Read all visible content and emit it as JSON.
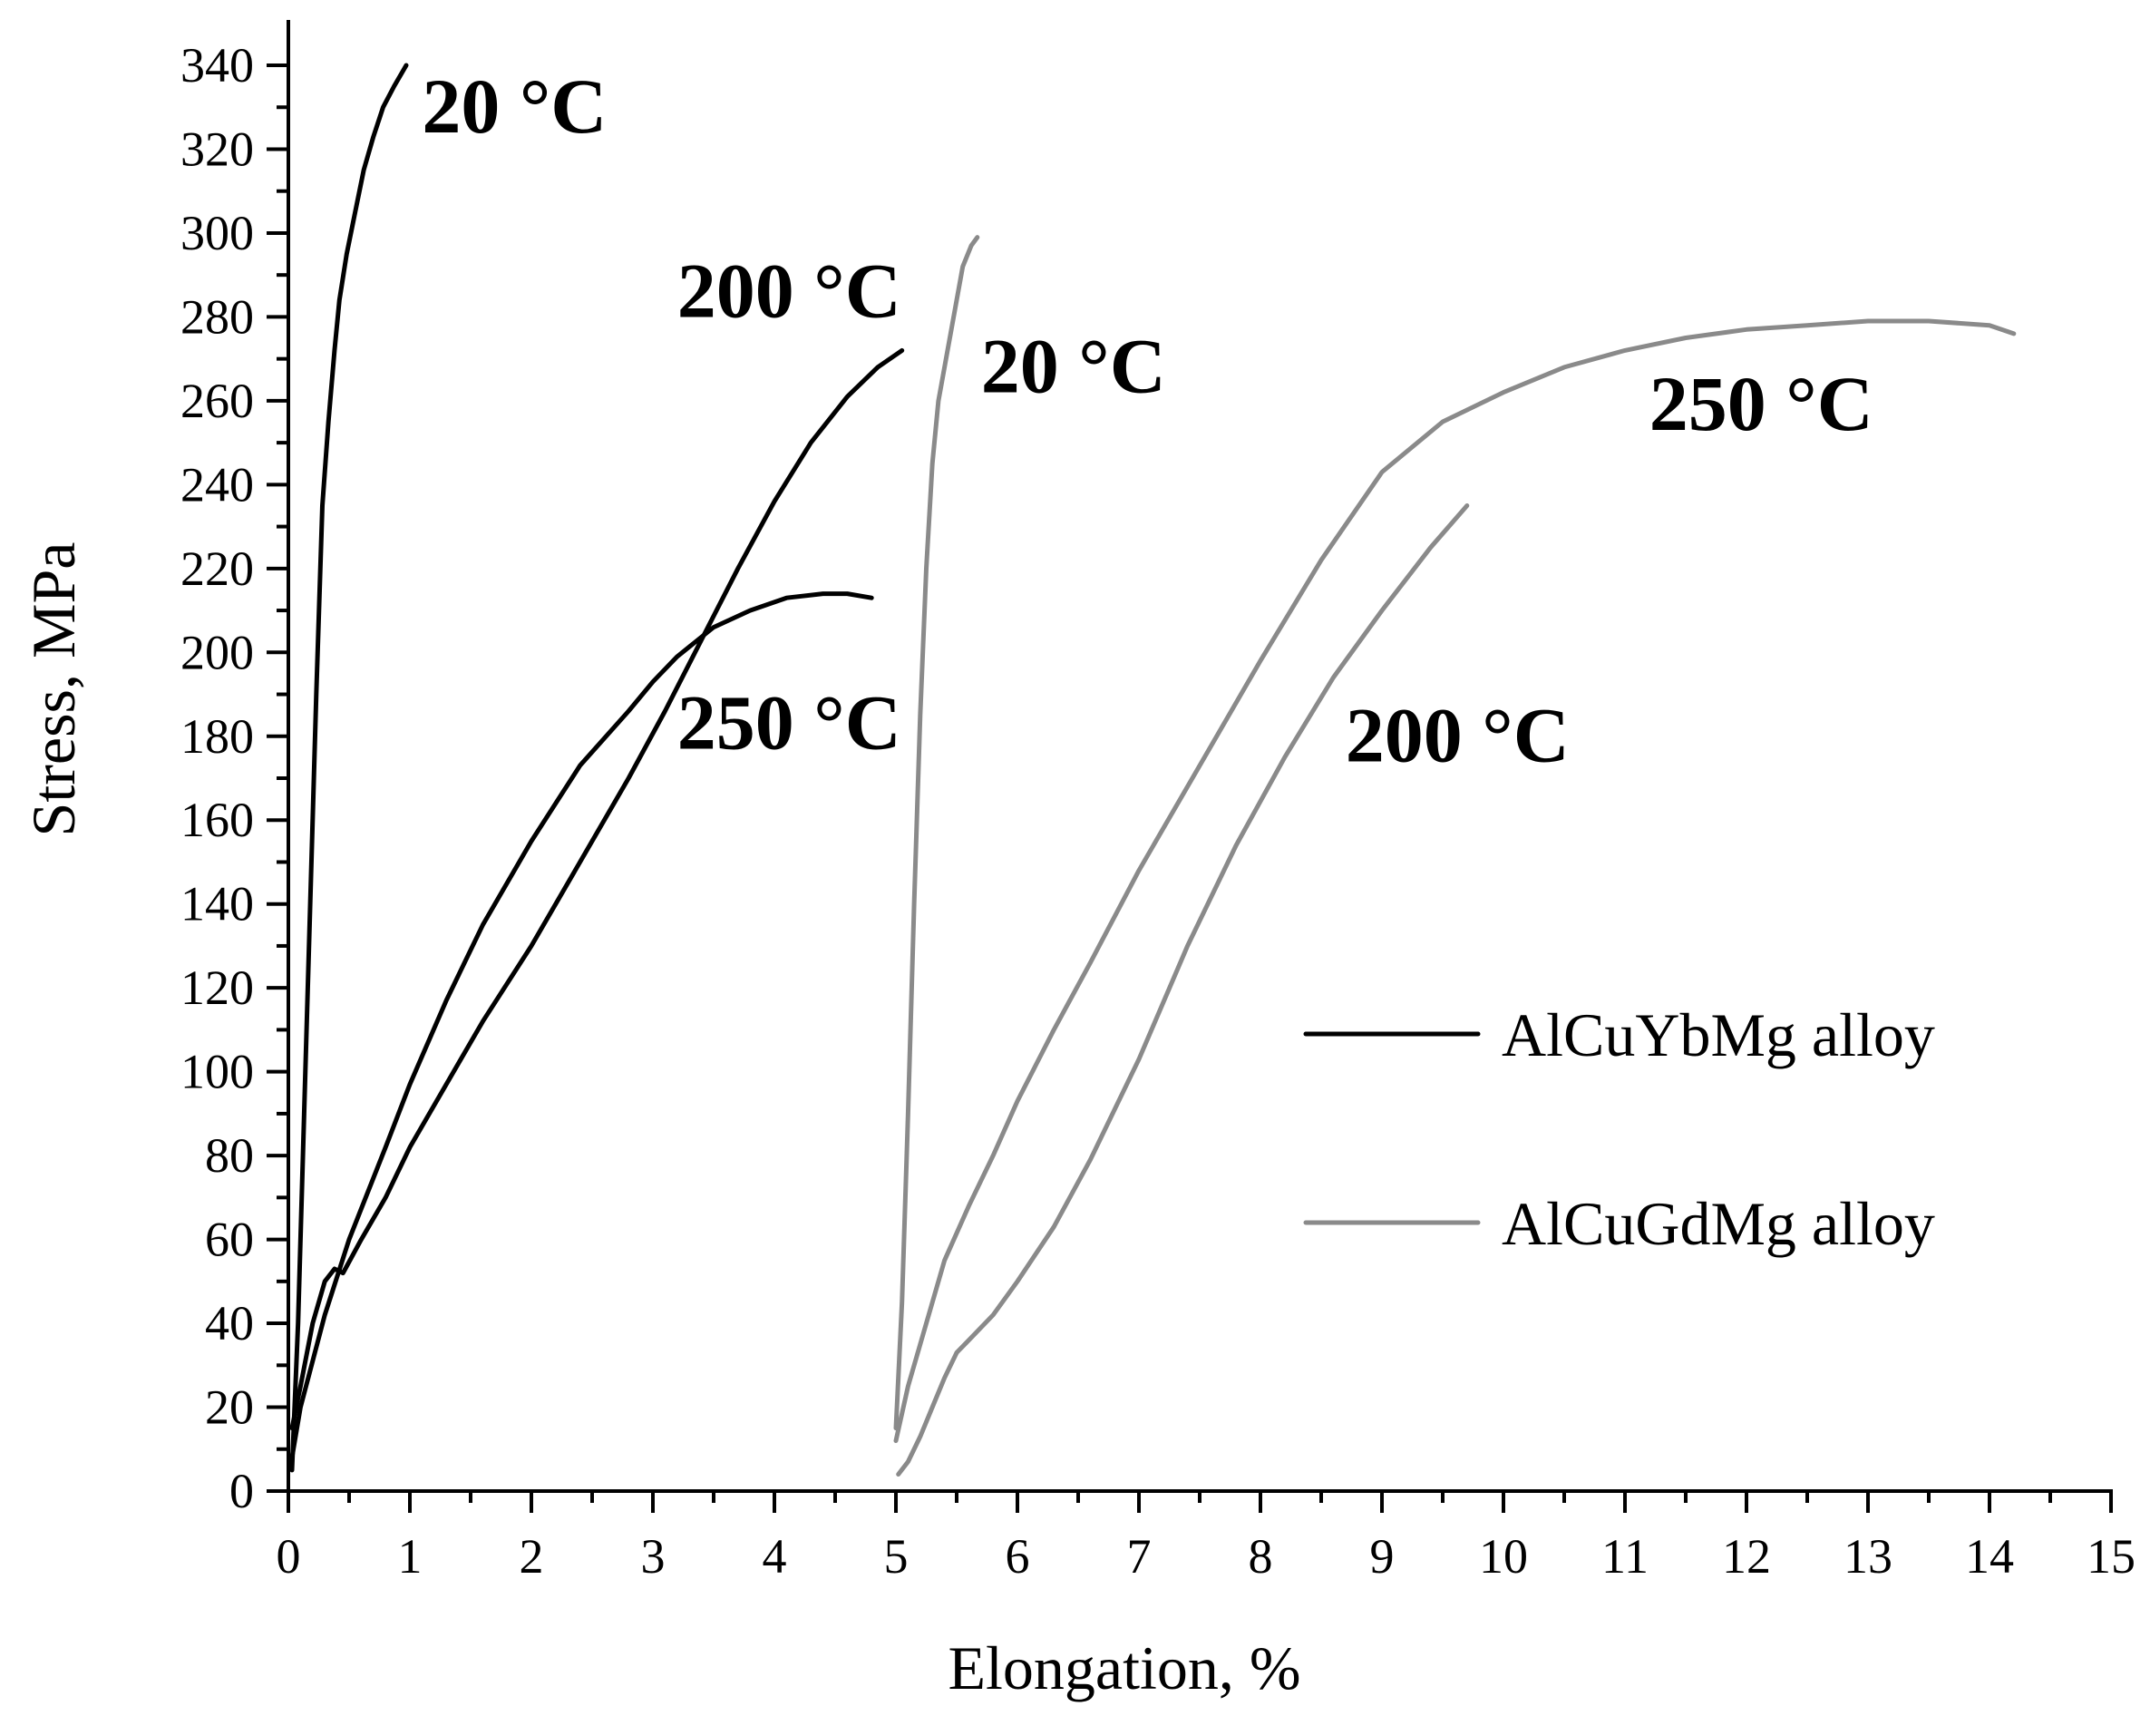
{
  "chart_data": {
    "type": "line",
    "xlabel": "Elongation, %",
    "ylabel": "Stress, MPa",
    "xlim": [
      0,
      15
    ],
    "ylim": [
      0,
      340
    ],
    "xticks": [
      0,
      1,
      2,
      3,
      4,
      5,
      6,
      7,
      8,
      9,
      10,
      11,
      12,
      13,
      14,
      15
    ],
    "yticks": [
      0,
      20,
      40,
      60,
      80,
      100,
      120,
      140,
      160,
      180,
      200,
      220,
      240,
      260,
      280,
      300,
      320,
      340
    ],
    "legend": {
      "placement": "right",
      "entries": [
        {
          "label": "AlCuYbMg alloy",
          "color": "#000000"
        },
        {
          "label": "AlCuGdMg alloy",
          "color": "#8a8a8a"
        }
      ]
    },
    "series": [
      {
        "name": "AlCuYbMg alloy 20 °C",
        "alloy": "AlCuYbMg alloy",
        "color": "#000000",
        "x": [
          0.03,
          0.08,
          0.13,
          0.18,
          0.23,
          0.28,
          0.33,
          0.38,
          0.42,
          0.48,
          0.55,
          0.62,
          0.7,
          0.78,
          0.87,
          0.97
        ],
        "y": [
          5,
          40,
          90,
          140,
          190,
          235,
          255,
          272,
          284,
          295,
          305,
          315,
          323,
          330,
          335,
          340
        ]
      },
      {
        "name": "AlCuYbMg alloy 200 °C",
        "alloy": "AlCuYbMg alloy",
        "color": "#000000",
        "x": [
          0.03,
          0.1,
          0.2,
          0.3,
          0.38,
          0.45,
          0.6,
          0.8,
          1.0,
          1.3,
          1.6,
          2.0,
          2.4,
          2.8,
          3.1,
          3.4,
          3.7,
          4.0,
          4.3,
          4.6,
          4.85,
          5.05
        ],
        "y": [
          15,
          25,
          40,
          50,
          53,
          52,
          60,
          70,
          82,
          97,
          112,
          130,
          150,
          170,
          186,
          203,
          220,
          236,
          250,
          261,
          268,
          272
        ]
      },
      {
        "name": "AlCuYbMg alloy 250 °C",
        "alloy": "AlCuYbMg alloy",
        "color": "#000000",
        "x": [
          0.03,
          0.1,
          0.3,
          0.5,
          0.8,
          1.0,
          1.3,
          1.6,
          2.0,
          2.4,
          2.8,
          3.0,
          3.2,
          3.5,
          3.8,
          4.1,
          4.4,
          4.6,
          4.8
        ],
        "y": [
          8,
          20,
          42,
          60,
          82,
          97,
          117,
          135,
          155,
          173,
          186,
          193,
          199,
          206,
          210,
          213,
          214,
          214,
          213
        ]
      },
      {
        "name": "AlCuGdMg alloy 20 °C",
        "alloy": "AlCuGdMg alloy",
        "color": "#8a8a8a",
        "x": [
          5.0,
          5.05,
          5.1,
          5.15,
          5.2,
          5.25,
          5.3,
          5.35,
          5.4,
          5.45,
          5.5,
          5.55,
          5.62,
          5.67
        ],
        "y": [
          15,
          45,
          90,
          140,
          185,
          220,
          245,
          260,
          268,
          276,
          284,
          292,
          297,
          299
        ]
      },
      {
        "name": "AlCuGdMg alloy 250 °C",
        "alloy": "AlCuGdMg alloy",
        "color": "#8a8a8a",
        "x": [
          5.0,
          5.1,
          5.2,
          5.3,
          5.4,
          5.6,
          5.8,
          6.0,
          6.3,
          6.6,
          7.0,
          7.5,
          8.0,
          8.5,
          9.0,
          9.5,
          10.0,
          10.5,
          11.0,
          11.5,
          12.0,
          12.5,
          13.0,
          13.5,
          14.0,
          14.2
        ],
        "y": [
          12,
          25,
          35,
          45,
          55,
          68,
          80,
          93,
          110,
          126,
          148,
          173,
          198,
          222,
          243,
          255,
          262,
          268,
          272,
          275,
          277,
          278,
          279,
          279,
          278,
          276
        ]
      },
      {
        "name": "AlCuGdMg alloy 200 °C",
        "alloy": "AlCuGdMg alloy",
        "color": "#8a8a8a",
        "x": [
          5.02,
          5.1,
          5.2,
          5.3,
          5.4,
          5.5,
          5.6,
          5.8,
          6.0,
          6.3,
          6.6,
          7.0,
          7.4,
          7.8,
          8.2,
          8.6,
          9.0,
          9.4,
          9.7
        ],
        "y": [
          4,
          7,
          13,
          20,
          27,
          33,
          36,
          42,
          50,
          63,
          79,
          103,
          130,
          154,
          175,
          194,
          210,
          225,
          235
        ]
      }
    ],
    "annotations": [
      {
        "text": "20 °C",
        "x": 1.1,
        "y": 324
      },
      {
        "text": "200 °C",
        "x": 3.2,
        "y": 280
      },
      {
        "text": "20 °C",
        "x": 5.7,
        "y": 262
      },
      {
        "text": "250 °C",
        "x": 11.2,
        "y": 253
      },
      {
        "text": "250 °C",
        "x": 3.2,
        "y": 177
      },
      {
        "text": "200 °C",
        "x": 8.7,
        "y": 174
      }
    ]
  }
}
